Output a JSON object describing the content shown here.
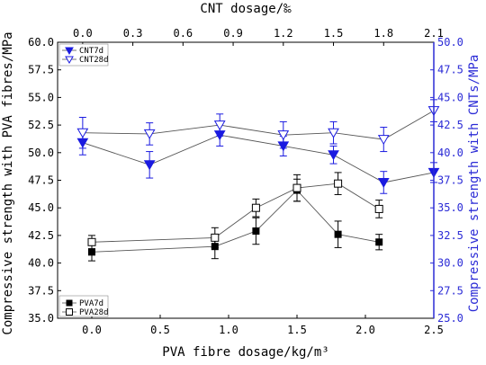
{
  "chart_data": [
    {
      "type": "line",
      "title": "",
      "xlabel": "PVA fibre dosage/kg/m³",
      "ylabel": "Compressive strength with PVA fibres/MPa",
      "xlim": [
        -0.25,
        2.5
      ],
      "ylim": [
        35.0,
        60.0
      ],
      "xticks": [
        0.0,
        0.5,
        1.0,
        1.5,
        2.0,
        2.5
      ],
      "xtick_labels": [
        "0.0",
        "0.5",
        "1.0",
        "1.5",
        "2.0",
        "2.5"
      ],
      "yticks": [
        35.0,
        37.5,
        40.0,
        42.5,
        45.0,
        47.5,
        50.0,
        52.5,
        55.0,
        57.5,
        60.0
      ],
      "ytick_labels": [
        "35.0",
        "37.5",
        "40.0",
        "42.5",
        "45.0",
        "47.5",
        "50.0",
        "52.5",
        "55.0",
        "57.5",
        "60.0"
      ],
      "legend_position": "bottom-left",
      "series": [
        {
          "name": "PVA7d",
          "marker": "filled-square",
          "color": "#000000",
          "x": [
            0.0,
            0.9,
            1.2,
            1.5,
            1.8,
            2.1
          ],
          "y": [
            41.0,
            41.5,
            42.9,
            46.6,
            42.6,
            41.9
          ],
          "err": [
            0.8,
            1.1,
            1.2,
            1.0,
            1.2,
            0.7
          ]
        },
        {
          "name": "PVA28d",
          "marker": "open-square",
          "color": "#000000",
          "x": [
            0.0,
            0.9,
            1.2,
            1.5,
            1.8,
            2.1
          ],
          "y": [
            41.9,
            42.3,
            45.0,
            46.8,
            47.2,
            44.9
          ],
          "err": [
            0.6,
            0.9,
            0.8,
            1.2,
            1.0,
            0.8
          ]
        }
      ]
    },
    {
      "type": "line",
      "title": "",
      "xlabel": "CNT dosage/‰",
      "ylabel": "Compressive strength with CNTs/MPa",
      "xlim": [
        -0.15,
        2.1
      ],
      "ylim": [
        25.0,
        50.0
      ],
      "xticks": [
        0.0,
        0.3,
        0.6,
        0.9,
        1.2,
        1.5,
        1.8,
        2.1
      ],
      "xtick_labels": [
        "0.0",
        "0.3",
        "0.6",
        "0.9",
        "1.2",
        "1.5",
        "1.8",
        "2.1"
      ],
      "yticks": [
        25.0,
        27.5,
        30.0,
        32.5,
        35.0,
        37.5,
        40.0,
        42.5,
        45.0,
        47.5,
        50.0
      ],
      "ytick_labels": [
        "25.0",
        "27.5",
        "30.0",
        "32.5",
        "35.0",
        "37.5",
        "40.0",
        "42.5",
        "45.0",
        "47.5",
        "50.0"
      ],
      "legend_position": "top-left",
      "series": [
        {
          "name": "CNT7d",
          "marker": "filled-triangle-down",
          "color": "#1a1ae0",
          "x": [
            0.0,
            0.4,
            0.82,
            1.2,
            1.5,
            1.8,
            2.1
          ],
          "y": [
            40.9,
            38.9,
            41.6,
            40.6,
            39.8,
            37.3,
            38.2
          ],
          "err": [
            1.1,
            1.2,
            1.0,
            0.9,
            0.8,
            1.0,
            0.9
          ]
        },
        {
          "name": "CNT28d",
          "marker": "open-triangle-down",
          "color": "#1a1ae0",
          "x": [
            0.0,
            0.4,
            0.82,
            1.2,
            1.5,
            1.8,
            2.1
          ],
          "y": [
            41.8,
            41.7,
            42.5,
            41.6,
            41.8,
            41.2,
            43.8
          ],
          "err": [
            1.4,
            1.0,
            1.0,
            1.2,
            1.0,
            1.1,
            1.0
          ]
        }
      ]
    }
  ]
}
